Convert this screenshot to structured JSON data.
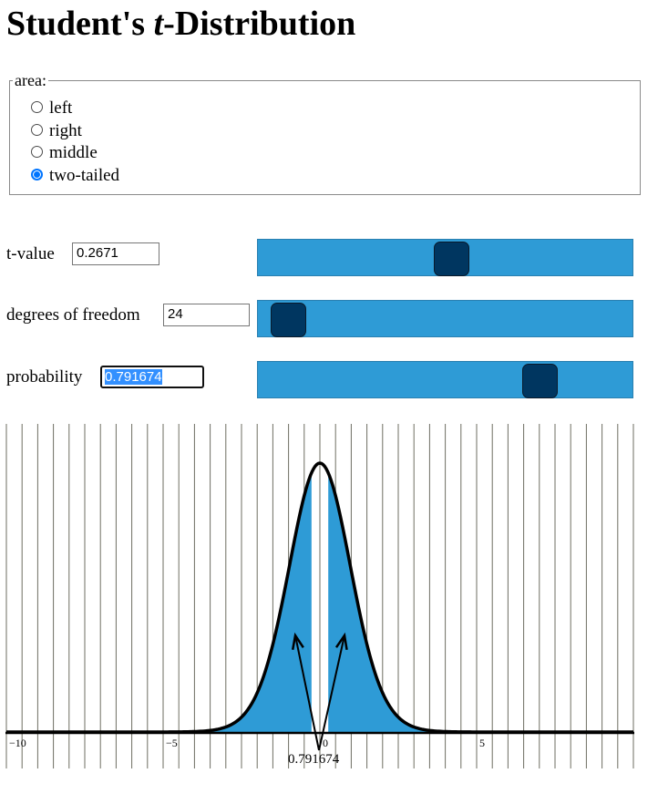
{
  "header": {
    "title_prefix": "Student's ",
    "title_italic": "t",
    "title_suffix": "-Distribution"
  },
  "area": {
    "legend": "area:",
    "options": [
      "left",
      "right",
      "middle",
      "two-tailed"
    ],
    "selected": "two-tailed"
  },
  "controls": {
    "t_value": {
      "label": "t-value",
      "value": "0.2671",
      "slider_fraction": 0.52
    },
    "dof": {
      "label": "degrees of freedom",
      "value": "24",
      "slider_fraction": 0.02
    },
    "probability": {
      "label": "probability",
      "value": "0.791674",
      "slider_fraction": 0.791674,
      "selected": true
    }
  },
  "chart_data": {
    "type": "area",
    "distribution": "student-t",
    "dof": 24,
    "t": 0.2671,
    "shaded_region": "two-tailed",
    "xlim": [
      -10,
      10
    ],
    "x_tick_labels": [
      "−10",
      "−5",
      "0",
      "5"
    ],
    "x_tick_values": [
      -10,
      -5,
      0,
      5
    ],
    "annotation": "0.791674",
    "colors": {
      "fill": "#2e9bd6",
      "curve": "#000000",
      "grid": "#6e6e62"
    }
  }
}
